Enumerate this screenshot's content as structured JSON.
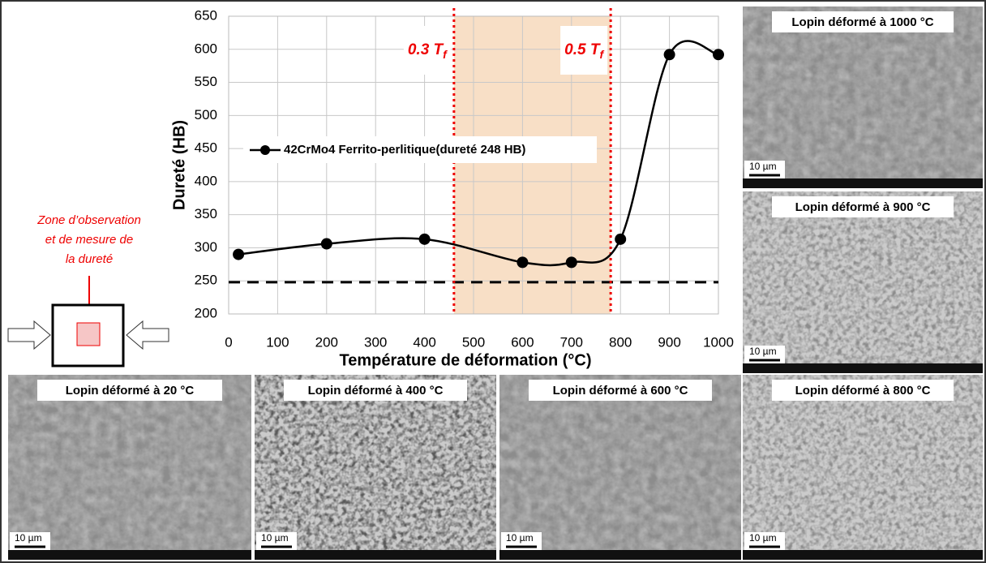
{
  "chart_data": {
    "type": "line",
    "x_label": "Température de déformation (°C)",
    "y_label": "Dureté (HB)",
    "x": [
      20,
      200,
      400,
      600,
      700,
      800,
      900,
      1000
    ],
    "series": [
      {
        "name": "42CrMo4 Ferrito-perlitique(dureté 248 HB)",
        "color": "#000000",
        "values": [
          290,
          306,
          313,
          278,
          278,
          313,
          592,
          592
        ]
      }
    ],
    "xlim": [
      0,
      1000
    ],
    "xticks": [
      0,
      100,
      200,
      300,
      400,
      500,
      600,
      700,
      800,
      900,
      1000
    ],
    "ylim": [
      200,
      650
    ],
    "yticks": [
      200,
      250,
      300,
      350,
      400,
      450,
      500,
      550,
      600,
      650
    ],
    "grid": true,
    "reference_hline": 248,
    "reference_lines": [
      {
        "x": 460,
        "label": "0.3 T",
        "subscript": "f"
      },
      {
        "x": 780,
        "label": "0.5 T",
        "subscript": "f"
      }
    ],
    "shaded_region_color": "#f8dfc6"
  },
  "diagram": {
    "label": "Zone d’observation et de mesure de la dureté"
  },
  "micrographs": [
    {
      "caption": "Lopin déformé à 1000 °C",
      "scale": "10 µm"
    },
    {
      "caption": "Lopin déformé à 900 °C",
      "scale": "10 µm"
    },
    {
      "caption": "Lopin déformé à 20 °C",
      "scale": "10 µm"
    },
    {
      "caption": "Lopin déformé à 400 °C",
      "scale": "10 µm"
    },
    {
      "caption": "Lopin déformé à 600 °C",
      "scale": "10 µm"
    },
    {
      "caption": "Lopin déformé à 800 °C",
      "scale": "10 µm"
    }
  ]
}
